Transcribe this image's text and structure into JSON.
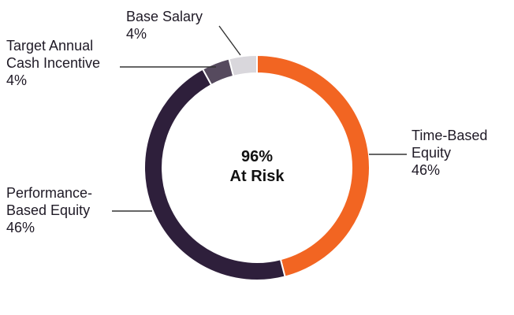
{
  "chart_data": {
    "type": "pie",
    "donut": true,
    "center_label": [
      "96%",
      "At Risk"
    ],
    "slices": [
      {
        "name": "Time-Based Equity",
        "label_lines": [
          "Time-Based",
          "Equity"
        ],
        "value": 46,
        "value_label": "46%",
        "color": "#f26522"
      },
      {
        "name": "Performance-Based Equity",
        "label_lines": [
          "Performance-",
          "Based Equity"
        ],
        "value": 46,
        "value_label": "46%",
        "color": "#2e1f3b"
      },
      {
        "name": "Target Annual Cash Incentive",
        "label_lines": [
          "Target Annual",
          "Cash Incentive"
        ],
        "value": 4,
        "value_label": "4%",
        "color": "#564a5e"
      },
      {
        "name": "Base Salary",
        "label_lines": [
          "Base Salary"
        ],
        "value": 4,
        "value_label": "4%",
        "color": "#d9d7dc"
      }
    ],
    "start_angle_deg": 0,
    "direction": "clockwise"
  }
}
